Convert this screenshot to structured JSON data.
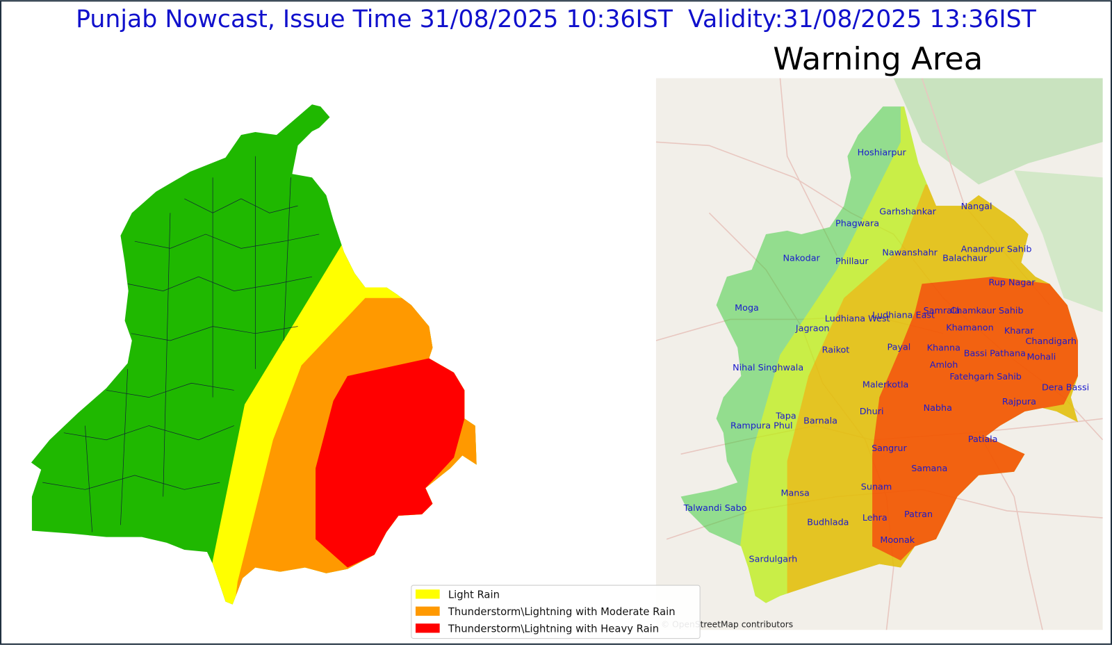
{
  "header": {
    "title": "Punjab Nowcast, Issue Time 31/08/2025 10:36IST  Validity:31/08/2025 13:36IST"
  },
  "warning_map": {
    "title": "Warning Area",
    "places": [
      "Hoshiarpur",
      "Garhshankar",
      "Nangal",
      "Phagwara",
      "Nawanshahr",
      "Anandpur Sahib",
      "Nakodar",
      "Phillaur",
      "Balachaur",
      "Rup Nagar",
      "Moga",
      "Samrala",
      "Chamkaur Sahib",
      "Ludhiana East",
      "Ludhiana West",
      "Jagraon",
      "Khamanon",
      "Kharar",
      "Chandigarh",
      "Raikot",
      "Payal",
      "Khanna",
      "Bassi Pathana",
      "Mohali",
      "Amloh",
      "Nihal Singhwala",
      "Fatehgarh Sahib",
      "Malerkotla",
      "Dera Bassi",
      "Rajpura",
      "Nabha",
      "Dhuri",
      "Tapa",
      "Barnala",
      "Rampura Phul",
      "Patiala",
      "Sangrur",
      "Samana",
      "Sunam",
      "Mansa",
      "Talwandi Sabo",
      "Patran",
      "Lehra",
      "Budhlada",
      "Moonak",
      "Sardulgarh"
    ],
    "attribution": "© OpenStreetMap contributors"
  },
  "legend": {
    "items": [
      {
        "label": "Light Rain",
        "color": "#ffff00"
      },
      {
        "label": "Thunderstorm\\Lightning with Moderate Rain",
        "color": "#ff9900"
      },
      {
        "label": "Thunderstorm\\Lightning with Heavy Rain",
        "color": "#ff0000"
      }
    ]
  }
}
